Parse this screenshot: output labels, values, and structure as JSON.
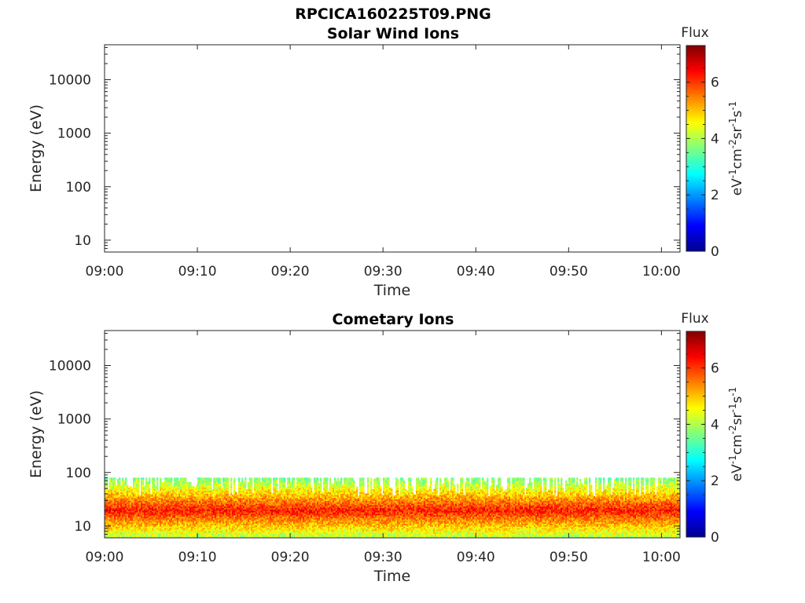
{
  "figure": {
    "title": "RPCICA160225T09.PNG"
  },
  "chart_data": [
    {
      "type": "heatmap",
      "title": "Solar Wind Ions",
      "xlabel": "Time",
      "ylabel": "Energy (eV)",
      "x_ticks": [
        "09:00",
        "09:10",
        "09:20",
        "09:30",
        "09:40",
        "09:50",
        "10:00"
      ],
      "y_ticks": [
        "10",
        "100",
        "1000",
        "10000"
      ],
      "y_scale": "log",
      "ylim": [
        6,
        45000
      ],
      "xlim": [
        "09:00",
        "10:02"
      ],
      "colorbar": {
        "label": "Flux",
        "unit_text": "eV-1cm-2sr-1s-1",
        "ticks": [
          "0",
          "2",
          "4",
          "6"
        ],
        "range": [
          0,
          7.3
        ],
        "colormap": "jet"
      },
      "data": "no flux recorded (empty panel)"
    },
    {
      "type": "heatmap",
      "title": "Cometary Ions",
      "xlabel": "Time",
      "ylabel": "Energy (eV)",
      "x_ticks": [
        "09:00",
        "09:10",
        "09:20",
        "09:30",
        "09:40",
        "09:50",
        "10:00"
      ],
      "y_ticks": [
        "10",
        "100",
        "1000",
        "10000"
      ],
      "y_scale": "log",
      "ylim": [
        6,
        45000
      ],
      "xlim": [
        "09:00",
        "10:02"
      ],
      "colorbar": {
        "label": "Flux",
        "unit_text": "eV-1cm-2sr-1s-1",
        "ticks": [
          "0",
          "2",
          "4",
          "6"
        ],
        "range": [
          0,
          7.3
        ],
        "colormap": "jet"
      },
      "data": {
        "description": "flux band between about 6 eV and 80 eV across full interval",
        "energy_band_eV": [
          6,
          80
        ],
        "core_band_eV": [
          13,
          30
        ],
        "core_flux": 6.2,
        "edge_flux": 3.5
      }
    }
  ]
}
